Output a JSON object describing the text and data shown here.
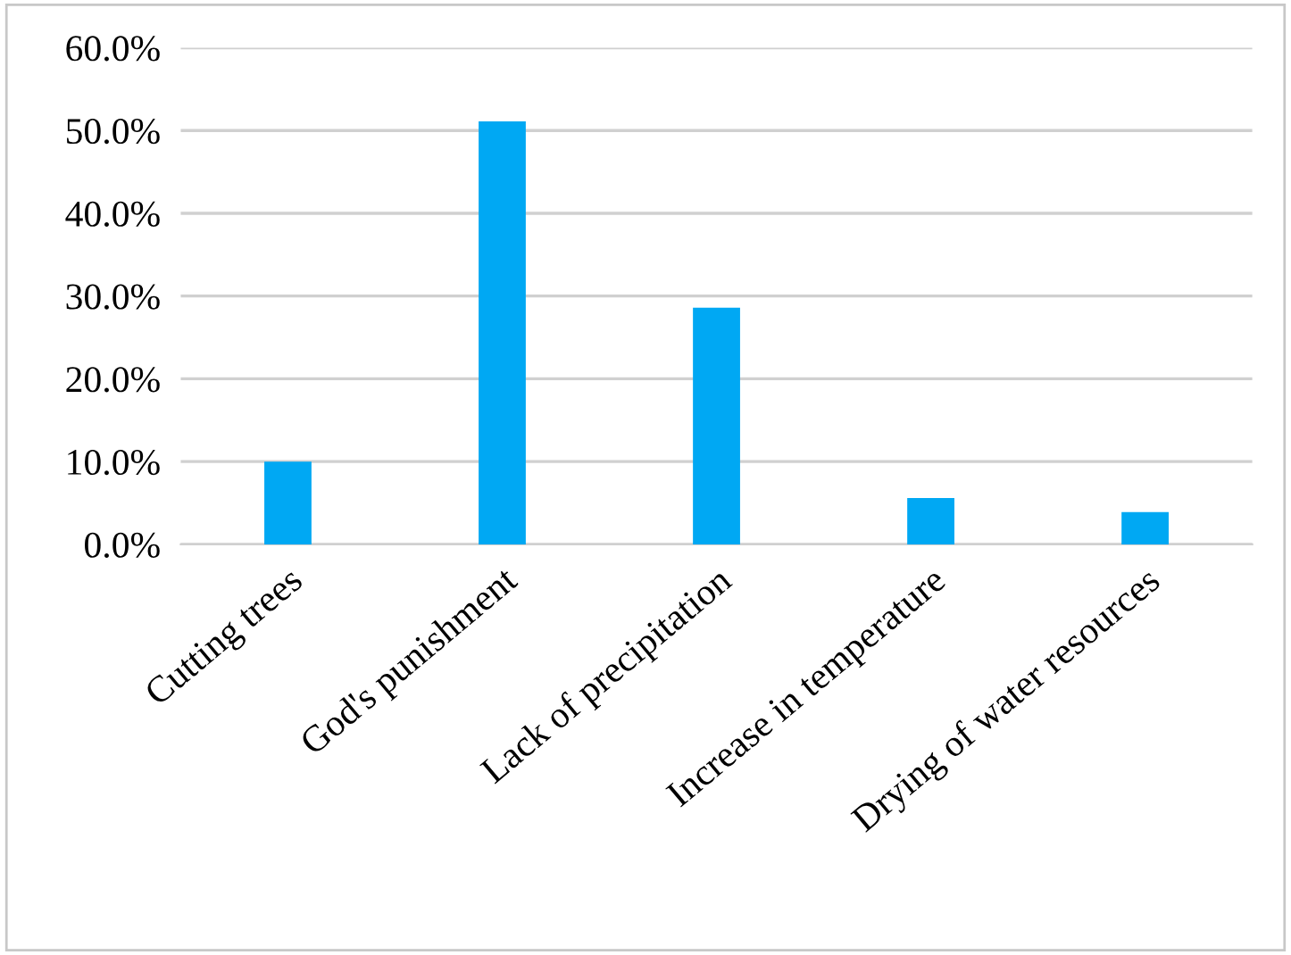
{
  "chart_data": {
    "type": "bar",
    "categories": [
      "Cutting trees",
      "God's punishment",
      "Lack of precipitation",
      "Increase in temperature",
      "Drying of water resources"
    ],
    "values": [
      10.0,
      51.1,
      28.6,
      5.6,
      3.9
    ],
    "color": "#00a8f3",
    "ylim": [
      0,
      60
    ],
    "yticks": [
      {
        "value": 0,
        "label": "0.0%"
      },
      {
        "value": 10,
        "label": "10.0%"
      },
      {
        "value": 20,
        "label": "20.0%"
      },
      {
        "value": 30,
        "label": "30.0%"
      },
      {
        "value": 40,
        "label": "40.0%"
      },
      {
        "value": 50,
        "label": "50.0%"
      },
      {
        "value": 60,
        "label": "60.0%"
      }
    ],
    "grid": "y",
    "legend": false
  }
}
